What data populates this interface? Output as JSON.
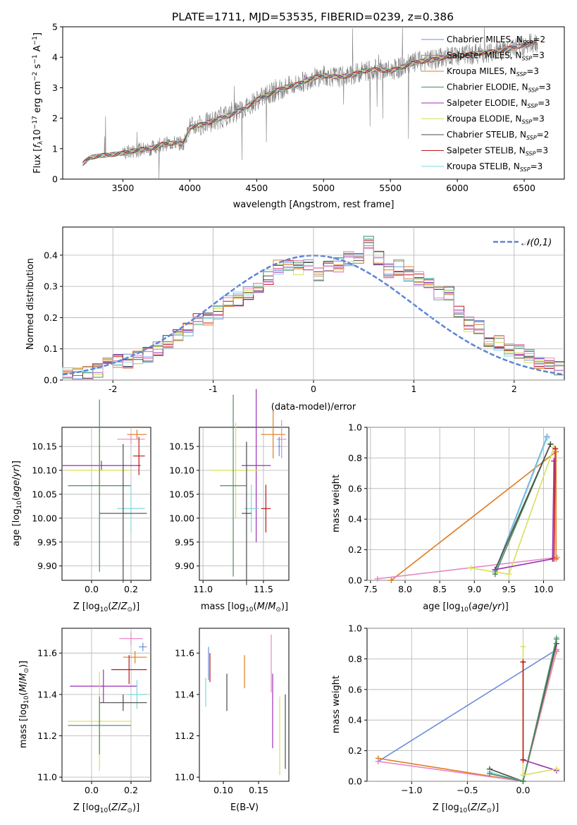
{
  "title": "PLATE=1711, MJD=53535, FIBERID=0239, z=0.386",
  "colors": {
    "cm": "#6a8fd8",
    "sm": "#e87a5a",
    "km": "#e07b1e",
    "ce": "#4f8c57",
    "se": "#9b2fb5",
    "ke": "#d7e05a",
    "cs": "#4a4a4a",
    "ss": "#c0161a",
    "ks": "#7fd7dc",
    "data": "#7f7f7f",
    "normal": "#5b84d6",
    "pink": "#e589c7"
  },
  "chart_data": [
    {
      "type": "line",
      "name": "spectrum",
      "xlabel": "wavelength [Angstrom, rest frame]",
      "ylabel": "Flux [f_λ 10^-17 erg cm^-2 s^-1 A^-1]",
      "xlim": [
        3050,
        6800
      ],
      "ylim": [
        0,
        5
      ],
      "xticks": [
        3500,
        4000,
        4500,
        5000,
        5500,
        6000,
        6500
      ],
      "yticks": [
        0,
        1,
        2,
        3,
        4,
        5
      ],
      "legend_position": "upper right",
      "continuum": {
        "x": [
          3200,
          3250,
          3300,
          3400,
          3500,
          3600,
          3700,
          3800,
          3900,
          3950,
          4000,
          4100,
          4200,
          4300,
          4400,
          4500,
          4600,
          4700,
          4800,
          4900,
          5000,
          5100,
          5200,
          5300,
          5400,
          5500,
          5600,
          5700,
          5800,
          5900,
          6000,
          6100,
          6200,
          6300,
          6400,
          6500,
          6600
        ],
        "y": [
          0.5,
          0.7,
          0.75,
          0.8,
          0.85,
          0.95,
          1.0,
          1.15,
          1.2,
          1.15,
          1.7,
          1.8,
          1.95,
          2.1,
          2.3,
          2.6,
          2.8,
          3.0,
          3.1,
          3.3,
          3.4,
          3.35,
          3.4,
          3.55,
          3.6,
          3.55,
          3.7,
          3.85,
          3.9,
          4.0,
          4.05,
          4.1,
          4.15,
          4.2,
          4.3,
          4.4,
          4.5
        ]
      },
      "series": [
        {
          "name": "Chabrier MILES, N_SSP=2",
          "color_key": "cm"
        },
        {
          "name": "Salpeter MILES, N_SSP=3",
          "color_key": "sm"
        },
        {
          "name": "Kroupa MILES, N_SSP=3",
          "color_key": "km"
        },
        {
          "name": "Chabrier ELODIE, N_SSP=3",
          "color_key": "ce"
        },
        {
          "name": "Salpeter ELODIE, N_SSP=3",
          "color_key": "se"
        },
        {
          "name": "Kroupa ELODIE, N_SSP=3",
          "color_key": "ke"
        },
        {
          "name": "Chabrier STELIB, N_SSP=2",
          "color_key": "cs"
        },
        {
          "name": "Salpeter STELIB, N_SSP=3",
          "color_key": "ss"
        },
        {
          "name": "Kroupa STELIB, N_SSP=3",
          "color_key": "ks"
        }
      ]
    },
    {
      "type": "histogram",
      "name": "residuals",
      "xlabel": "(data-model)/error",
      "ylabel": "Normed distribution",
      "xlim": [
        -2.5,
        2.5
      ],
      "ylim": [
        0,
        0.49
      ],
      "xticks": [
        -2,
        -1,
        0,
        1,
        2
      ],
      "yticks": [
        0.0,
        0.1,
        0.2,
        0.3,
        0.4
      ],
      "grid": true,
      "bin_edges_from": -2.5,
      "bin_width": 0.1,
      "normal_label": "𝒩(0,1)",
      "hist_color_keys": [
        "cm",
        "ss",
        "ke",
        "ce",
        "se",
        "cs",
        "km",
        "ks",
        "pink"
      ],
      "mean_heights": [
        0.015,
        0.018,
        0.02,
        0.03,
        0.05,
        0.06,
        0.06,
        0.07,
        0.08,
        0.1,
        0.12,
        0.14,
        0.16,
        0.19,
        0.2,
        0.22,
        0.25,
        0.26,
        0.28,
        0.3,
        0.33,
        0.36,
        0.36,
        0.36,
        0.37,
        0.34,
        0.36,
        0.37,
        0.39,
        0.39,
        0.44,
        0.39,
        0.35,
        0.36,
        0.34,
        0.33,
        0.32,
        0.28,
        0.28,
        0.22,
        0.18,
        0.17,
        0.13,
        0.12,
        0.1,
        0.09,
        0.08,
        0.06,
        0.05,
        0.04
      ]
    },
    {
      "type": "errorbar",
      "name": "age-vs-Z",
      "xlabel": "Z [log10(Z/Z_sun)]",
      "ylabel": "age [log10(age/yr)]",
      "xlim": [
        -0.15,
        0.3
      ],
      "ylim": [
        9.87,
        10.19
      ],
      "xticks": [
        0.0,
        0.2
      ],
      "xticklabels": [
        "0.0",
        "0.2"
      ],
      "yticks": [
        9.9,
        9.95,
        10.0,
        10.05,
        10.1,
        10.15
      ],
      "yticklabels": [
        "9.90",
        "9.95",
        "10.00",
        "10.05",
        "10.10",
        "10.15"
      ],
      "points": [
        {
          "c": "km",
          "x": 0.23,
          "xe": 0.05,
          "y": 10.175,
          "ye": 0.01
        },
        {
          "c": "pink",
          "x": 0.2,
          "xe": 0.07,
          "y": 10.165,
          "ye": 0.01
        },
        {
          "c": "se",
          "x": 0.05,
          "xe": 0.2,
          "y": 10.11,
          "ye": 0.01
        },
        {
          "c": "ke",
          "x": 0.04,
          "xe": 0.16,
          "y": 10.1,
          "ye": 0.055
        },
        {
          "c": "ce",
          "x": 0.04,
          "xe": 0.16,
          "y": 10.068,
          "ye": 0.18
        },
        {
          "c": "ks",
          "x": 0.2,
          "xe": 0.07,
          "y": 10.02,
          "ye": 0.05
        },
        {
          "c": "cs",
          "x": 0.16,
          "xe": 0.12,
          "y": 10.01,
          "ye": 0.145
        },
        {
          "c": "ss",
          "x": 0.24,
          "xe": 0.03,
          "y": 10.13,
          "ye": 0.04
        }
      ]
    },
    {
      "type": "errorbar",
      "name": "age-vs-mass",
      "xlabel": "mass [log10(M/M_sun)]",
      "xlim": [
        10.97,
        11.71
      ],
      "ylim": [
        9.87,
        10.19
      ],
      "xticks": [
        11.0,
        11.5
      ],
      "xticklabels": [
        "11.0",
        "11.5"
      ],
      "yticks": [
        9.9,
        9.95,
        10.0,
        10.05,
        10.1,
        10.15
      ],
      "yticklabels": [
        "9.90",
        "9.95",
        "10.00",
        "10.05",
        "10.10",
        "10.15"
      ],
      "points": [
        {
          "c": "km",
          "x": 11.58,
          "xe": 0.1,
          "y": 10.175,
          "ye": 0.05
        },
        {
          "c": "pink",
          "x": 11.65,
          "xe": 0.04,
          "y": 10.165,
          "ye": 0.04
        },
        {
          "c": "se",
          "x": 11.44,
          "xe": 0.12,
          "y": 10.11,
          "ye": 0.16
        },
        {
          "c": "ke",
          "x": 11.27,
          "xe": 0.2,
          "y": 10.1,
          "ye": 0.1
        },
        {
          "c": "ce",
          "x": 11.25,
          "xe": 0.11,
          "y": 10.068,
          "ye": 0.19
        },
        {
          "c": "ks",
          "x": 11.4,
          "xe": 0.06,
          "y": 10.02,
          "ye": 0.05
        },
        {
          "c": "cs",
          "x": 11.36,
          "xe": 0.04,
          "y": 10.01,
          "ye": 0.15
        },
        {
          "c": "ss",
          "x": 11.52,
          "xe": 0.04,
          "y": 10.02,
          "ye": 0.05
        },
        {
          "c": "cm",
          "x": 11.63,
          "xe": 0.01,
          "y": 10.15,
          "ye": 0.02
        }
      ]
    },
    {
      "type": "line",
      "name": "mass-weight-vs-age",
      "xlabel": "age [log10(age/yr)]",
      "ylabel": "mass weight",
      "xlim": [
        7.45,
        10.3
      ],
      "ylim": [
        0,
        1
      ],
      "xticks": [
        7.5,
        8.0,
        8.5,
        9.0,
        9.5,
        10.0
      ],
      "xticklabels": [
        "7.5",
        "8.0",
        "8.5",
        "9.0",
        "9.5",
        "10.0"
      ],
      "yticks": [
        0.0,
        0.2,
        0.4,
        0.6,
        0.8,
        1.0
      ],
      "yticklabels": [
        "0.0",
        "0.2",
        "0.4",
        "0.6",
        "0.8",
        "1.0"
      ],
      "grid": true,
      "lines": [
        {
          "c": "km",
          "x": [
            7.8,
            10.18
          ],
          "y": [
            0.0,
            0.84
          ]
        },
        {
          "c": "pink",
          "x": [
            7.6,
            10.2
          ],
          "y": [
            0.01,
            0.15
          ]
        },
        {
          "c": "cm",
          "x": [
            9.3,
            10.05
          ],
          "y": [
            0.06,
            0.94
          ]
        },
        {
          "c": "ks",
          "x": [
            9.3,
            10.05
          ],
          "y": [
            0.05,
            0.93
          ]
        },
        {
          "c": "ce",
          "x": [
            9.3,
            10.1
          ],
          "y": [
            0.04,
            0.89
          ]
        },
        {
          "c": "cs",
          "x": [
            9.3,
            10.1
          ],
          "y": [
            0.07,
            0.89
          ]
        },
        {
          "c": "ke",
          "x": [
            8.95,
            9.5,
            10.15
          ],
          "y": [
            0.08,
            0.04,
            0.87
          ]
        },
        {
          "c": "se",
          "x": [
            9.3,
            10.13,
            10.15
          ],
          "y": [
            0.07,
            0.14,
            0.78
          ]
        },
        {
          "c": "ss",
          "x": [
            10.15,
            10.17
          ],
          "y": [
            0.14,
            0.86
          ]
        },
        {
          "c": "km",
          "x": [
            10.18,
            10.18
          ],
          "y": [
            0.14,
            0.84
          ]
        }
      ]
    },
    {
      "type": "errorbar",
      "name": "mass-vs-Z",
      "xlabel": "Z [log10(Z/Z_sun)]",
      "ylabel": "mass [log10(M/M_sun)]",
      "xlim": [
        -0.15,
        0.3
      ],
      "ylim": [
        10.98,
        11.72
      ],
      "xticks": [
        0.0,
        0.2
      ],
      "xticklabels": [
        "0.0",
        "0.2"
      ],
      "yticks": [
        11.0,
        11.2,
        11.4,
        11.6
      ],
      "yticklabels": [
        "11.0",
        "11.2",
        "11.4",
        "11.6"
      ],
      "points": [
        {
          "c": "pink",
          "x": 0.2,
          "xe": 0.06,
          "y": 11.67,
          "ye": 0.03
        },
        {
          "c": "cm",
          "x": 0.26,
          "xe": 0.02,
          "y": 11.63,
          "ye": 0.02
        },
        {
          "c": "km",
          "x": 0.22,
          "xe": 0.06,
          "y": 11.58,
          "ye": 0.03
        },
        {
          "c": "ss",
          "x": 0.19,
          "xe": 0.09,
          "y": 11.52,
          "ye": 0.07
        },
        {
          "c": "se",
          "x": 0.06,
          "xe": 0.17,
          "y": 11.44,
          "ye": 0.08
        },
        {
          "c": "ks",
          "x": 0.23,
          "xe": 0.05,
          "y": 11.4,
          "ye": 0.07
        },
        {
          "c": "cs",
          "x": 0.16,
          "xe": 0.12,
          "y": 11.36,
          "ye": 0.04
        },
        {
          "c": "ke",
          "x": 0.04,
          "xe": 0.16,
          "y": 11.27,
          "ye": 0.24
        },
        {
          "c": "ce",
          "x": 0.04,
          "xe": 0.16,
          "y": 11.25,
          "ye": 0.14
        }
      ]
    },
    {
      "type": "errorbar",
      "name": "mass-vs-EBV",
      "xlabel": "E(B-V)",
      "xlim": [
        0.066,
        0.193
      ],
      "ylim": [
        10.98,
        11.72
      ],
      "xticks": [
        0.1,
        0.15
      ],
      "xticklabels": [
        "0.10",
        "0.15"
      ],
      "yticks": [
        11.0,
        11.2,
        11.4,
        11.6
      ],
      "yticklabels": [
        "11.0",
        "11.2",
        "11.4",
        "11.6"
      ],
      "points": [
        {
          "c": "ks",
          "x": 0.075,
          "y": 11.41,
          "ye": 0.07
        },
        {
          "c": "cm",
          "x": 0.079,
          "y": 11.55,
          "ye": 0.08
        },
        {
          "c": "ss",
          "x": 0.081,
          "y": 11.53,
          "ye": 0.07
        },
        {
          "c": "cs",
          "x": 0.105,
          "y": 11.41,
          "ye": 0.09
        },
        {
          "c": "km",
          "x": 0.13,
          "y": 11.51,
          "ye": 0.08
        },
        {
          "c": "pink",
          "x": 0.168,
          "y": 11.55,
          "ye": 0.14
        },
        {
          "c": "se",
          "x": 0.17,
          "y": 11.32,
          "ye": 0.18
        },
        {
          "c": "ke",
          "x": 0.18,
          "y": 11.2,
          "ye": 0.19
        },
        {
          "c": "cs",
          "x": 0.188,
          "y": 11.22,
          "ye": 0.18
        }
      ]
    },
    {
      "type": "line",
      "name": "mass-weight-vs-Z",
      "xlabel": "Z [log10(Z/Z_sun)]",
      "ylabel": "mass weight",
      "xlim": [
        -1.4,
        0.37
      ],
      "ylim": [
        0,
        1
      ],
      "xticks": [
        -1.0,
        -0.5,
        0.0
      ],
      "xticklabels": [
        "−1.0",
        "−0.5",
        "0.0"
      ],
      "yticks": [
        0.0,
        0.2,
        0.4,
        0.6,
        0.8,
        1.0
      ],
      "yticklabels": [
        "0.0",
        "0.2",
        "0.4",
        "0.6",
        "0.8",
        "1.0"
      ],
      "grid": true,
      "lines": [
        {
          "c": "cm",
          "x": [
            -1.3,
            0.3
          ],
          "y": [
            0.13,
            0.86
          ]
        },
        {
          "c": "km",
          "x": [
            -1.3,
            0.0,
            0.3
          ],
          "y": [
            0.15,
            0.0,
            0.85
          ]
        },
        {
          "c": "pink",
          "x": [
            -1.3,
            0.0,
            0.3
          ],
          "y": [
            0.13,
            0.0,
            0.86
          ]
        },
        {
          "c": "cs",
          "x": [
            -0.3,
            0.0,
            0.3
          ],
          "y": [
            0.08,
            0.0,
            0.9
          ]
        },
        {
          "c": "ks",
          "x": [
            -0.3,
            0.0,
            0.3
          ],
          "y": [
            0.06,
            0.0,
            0.94
          ]
        },
        {
          "c": "ce",
          "x": [
            -0.3,
            0.0,
            0.3
          ],
          "y": [
            0.05,
            0.0,
            0.93
          ]
        },
        {
          "c": "se",
          "x": [
            0.0,
            0.3
          ],
          "y": [
            0.14,
            0.07
          ]
        },
        {
          "c": "ke",
          "x": [
            0.0,
            0.0,
            0.3
          ],
          "y": [
            0.88,
            0.04,
            0.08
          ]
        },
        {
          "c": "ss",
          "x": [
            0.0,
            0.0
          ],
          "y": [
            0.78,
            0.14
          ]
        }
      ]
    }
  ]
}
